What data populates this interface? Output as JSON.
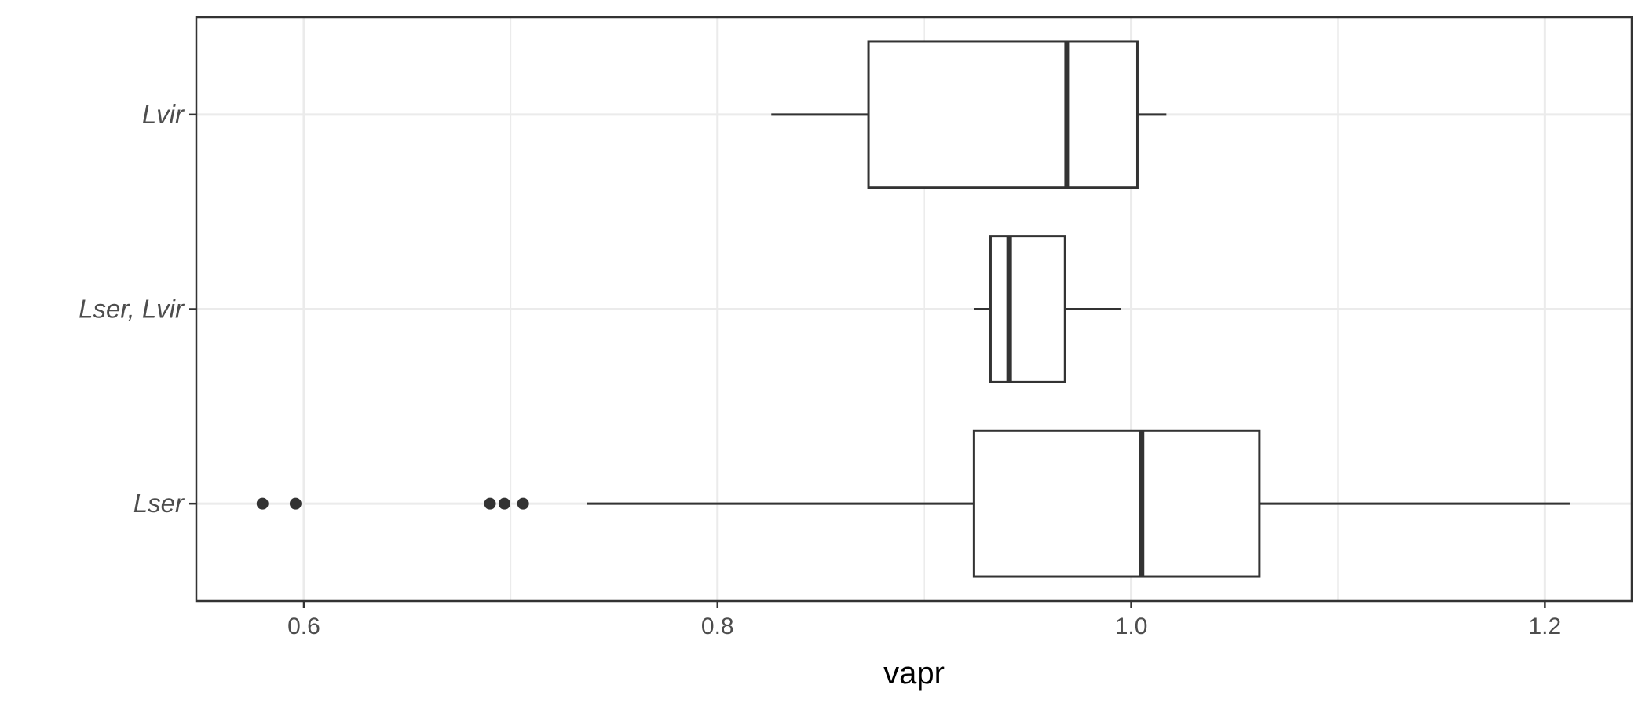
{
  "chart_data": {
    "type": "boxplot",
    "orientation": "horizontal",
    "xlabel": "vapr",
    "ylabel": "",
    "xlim": [
      0.548,
      1.242
    ],
    "x_ticks": [
      {
        "value": 0.6,
        "label": "0.6"
      },
      {
        "value": 0.8,
        "label": "0.8"
      },
      {
        "value": 1.0,
        "label": "1.0"
      },
      {
        "value": 1.2,
        "label": "1.2"
      }
    ],
    "x_minor_ticks": [
      0.7,
      0.9,
      1.1
    ],
    "grid": true,
    "categories": [
      "Lvir",
      "Lser, Lvir",
      "Lser"
    ],
    "boxes": [
      {
        "category": "Lvir",
        "whisker_low": 0.826,
        "q1": 0.873,
        "median": 0.969,
        "q3": 1.003,
        "whisker_high": 1.017,
        "outliers": []
      },
      {
        "category": "Lser, Lvir",
        "whisker_low": 0.924,
        "q1": 0.932,
        "median": 0.941,
        "q3": 0.968,
        "whisker_high": 0.995,
        "outliers": []
      },
      {
        "category": "Lser",
        "whisker_low": 0.737,
        "q1": 0.924,
        "median": 1.005,
        "q3": 1.062,
        "whisker_high": 1.212,
        "outliers": [
          0.58,
          0.596,
          0.69,
          0.697,
          0.706
        ]
      }
    ],
    "colors": {
      "box_line": "#333333",
      "median": "#333333",
      "outlier": "#333333",
      "grid": "#ebebeb",
      "panel_border": "#333333"
    }
  }
}
